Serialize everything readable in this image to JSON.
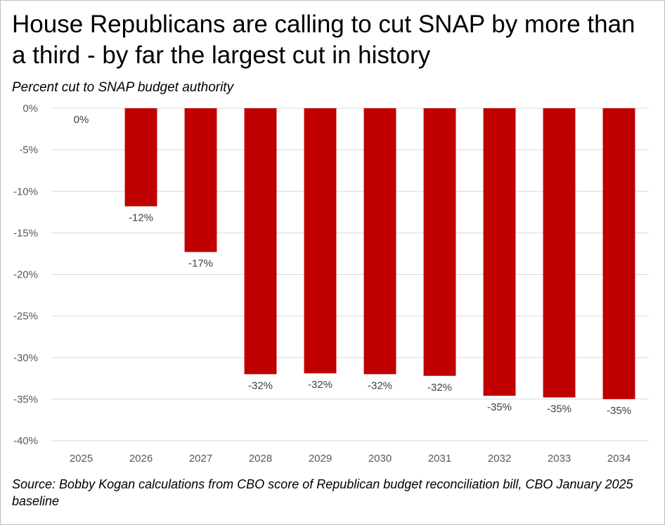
{
  "chart_data": {
    "type": "bar",
    "title": "House Republicans are calling to cut SNAP by more than a third - by far the largest cut in history",
    "subtitle": "Percent cut to SNAP budget authority",
    "source": "Source: Bobby Kogan calculations from CBO score of Republican budget reconciliation bill, CBO January 2025 baseline",
    "xlabel": "",
    "ylabel": "",
    "categories": [
      "2025",
      "2026",
      "2027",
      "2028",
      "2029",
      "2030",
      "2031",
      "2032",
      "2033",
      "2034"
    ],
    "values": [
      0,
      -11.8,
      -17.3,
      -32.0,
      -31.9,
      -32.0,
      -32.2,
      -34.6,
      -34.8,
      -35.0
    ],
    "data_labels": [
      "0%",
      "-12%",
      "-17%",
      "-32%",
      "-32%",
      "-32%",
      "-32%",
      "-35%",
      "-35%",
      "-35%"
    ],
    "ylim": [
      -40,
      0
    ],
    "yticks": [
      0,
      -5,
      -10,
      -15,
      -20,
      -25,
      -30,
      -35,
      -40
    ],
    "ytick_labels": [
      "0%",
      "-5%",
      "-10%",
      "-15%",
      "-20%",
      "-25%",
      "-30%",
      "-35%",
      "-40%"
    ],
    "grid": true,
    "bar_color": "#C00000",
    "grid_color": "#D9D9D9"
  }
}
